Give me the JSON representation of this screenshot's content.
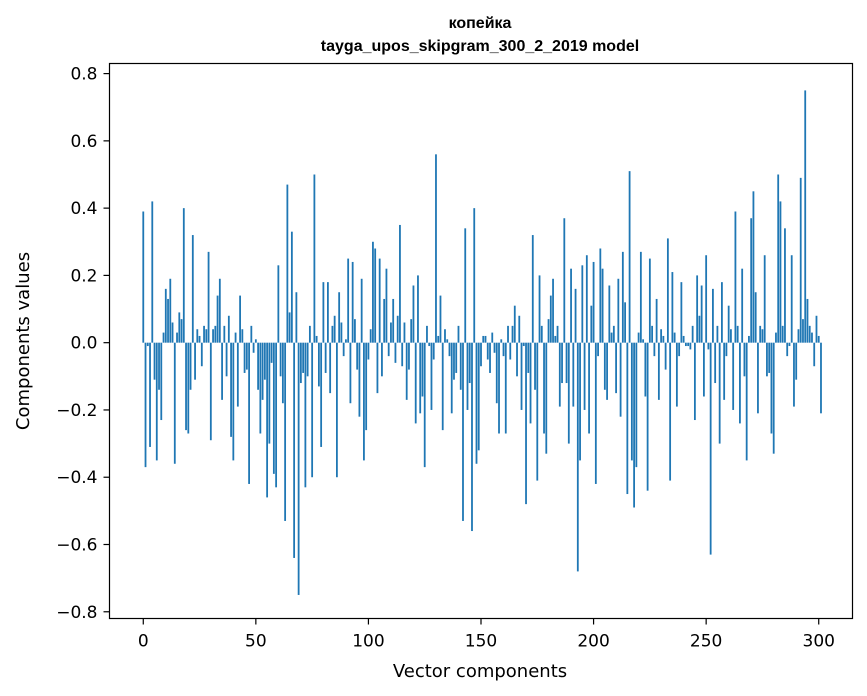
{
  "chart_data": {
    "type": "bar",
    "title_lines": [
      "копейка",
      "tayga_upos_skipgram_300_2_2019 model"
    ],
    "xlabel": "Vector components",
    "ylabel": "Components values",
    "xlim": [
      -15,
      315
    ],
    "ylim": [
      -0.82,
      0.83
    ],
    "xticks": [
      0,
      50,
      100,
      150,
      200,
      250,
      300
    ],
    "xtick_labels": [
      "0",
      "50",
      "100",
      "150",
      "200",
      "250",
      "300"
    ],
    "yticks": [
      0.8,
      0.6,
      0.4,
      0.2,
      0.0,
      -0.2,
      -0.4,
      -0.6,
      -0.8
    ],
    "ytick_labels": [
      "0.8",
      "0.6",
      "0.4",
      "0.2",
      "0.0",
      "−0.2",
      "−0.4",
      "−0.6",
      "−0.8"
    ],
    "bar_color": "#1f77b4",
    "grid": false,
    "values": [
      0.39,
      -0.37,
      -0.01,
      -0.31,
      0.42,
      -0.11,
      -0.35,
      -0.14,
      -0.23,
      0.03,
      0.16,
      0.13,
      0.19,
      0.06,
      -0.36,
      0.03,
      0.09,
      0.07,
      0.4,
      -0.26,
      -0.27,
      -0.14,
      0.32,
      -0.11,
      0.04,
      0.02,
      -0.07,
      0.05,
      0.04,
      0.27,
      -0.29,
      0.04,
      0.05,
      0.14,
      0.19,
      -0.17,
      0.05,
      -0.1,
      0.08,
      -0.28,
      -0.35,
      0.03,
      -0.19,
      0.14,
      0.04,
      -0.09,
      -0.08,
      -0.42,
      0.05,
      -0.03,
      0.01,
      -0.14,
      -0.27,
      -0.17,
      -0.11,
      -0.46,
      -0.3,
      -0.06,
      -0.39,
      -0.43,
      0.23,
      -0.1,
      -0.18,
      -0.53,
      0.47,
      0.09,
      0.33,
      -0.64,
      0.15,
      -0.75,
      -0.12,
      -0.09,
      -0.43,
      -0.1,
      0.05,
      -0.4,
      0.5,
      0.02,
      -0.13,
      -0.31,
      0.18,
      -0.09,
      0.18,
      -0.15,
      0.05,
      0.08,
      -0.4,
      0.15,
      0.06,
      -0.04,
      0.01,
      0.25,
      -0.18,
      0.24,
      0.07,
      -0.08,
      -0.22,
      0.19,
      -0.35,
      -0.26,
      -0.05,
      0.04,
      0.3,
      0.28,
      -0.15,
      0.25,
      -0.1,
      0.13,
      0.22,
      -0.04,
      0.06,
      0.13,
      -0.06,
      0.08,
      0.35,
      -0.07,
      0.06,
      -0.17,
      -0.08,
      0.07,
      0.17,
      -0.24,
      0.2,
      -0.21,
      -0.16,
      -0.37,
      0.05,
      -0.01,
      -0.2,
      -0.05,
      0.56,
      0.02,
      0.14,
      -0.26,
      0.04,
      0.01,
      -0.04,
      -0.21,
      -0.11,
      -0.09,
      0.05,
      -0.14,
      -0.53,
      0.34,
      -0.2,
      -0.12,
      -0.56,
      0.4,
      -0.36,
      -0.32,
      -0.07,
      0.02,
      0.02,
      -0.05,
      -0.09,
      0.03,
      -0.03,
      -0.18,
      -0.27,
      0.01,
      -0.04,
      -0.27,
      0.05,
      -0.05,
      0.05,
      0.11,
      -0.1,
      0.08,
      -0.2,
      -0.01,
      -0.48,
      -0.09,
      -0.24,
      0.32,
      -0.14,
      -0.41,
      0.2,
      0.05,
      -0.27,
      -0.33,
      0.07,
      0.14,
      0.19,
      0.02,
      0.05,
      -0.19,
      -0.12,
      0.37,
      -0.12,
      -0.3,
      0.22,
      -0.19,
      0.16,
      -0.68,
      -0.35,
      0.23,
      -0.2,
      0.26,
      -0.27,
      0.11,
      0.24,
      -0.42,
      -0.04,
      0.28,
      0.22,
      -0.14,
      -0.17,
      0.17,
      0.03,
      0.05,
      -0.15,
      0.19,
      -0.22,
      0.27,
      0.12,
      -0.45,
      0.51,
      -0.35,
      -0.49,
      -0.37,
      0.03,
      0.27,
      0.01,
      -0.16,
      -0.44,
      0.25,
      0.05,
      -0.04,
      0.13,
      -0.17,
      0.04,
      0.02,
      -0.08,
      0.31,
      -0.41,
      0.21,
      0.03,
      -0.19,
      -0.04,
      0.18,
      0.02,
      -0.01,
      -0.01,
      -0.02,
      0.05,
      -0.23,
      0.2,
      0.08,
      0.17,
      -0.16,
      0.26,
      -0.02,
      -0.63,
      0.16,
      -0.12,
      0.05,
      -0.3,
      0.18,
      -0.17,
      -0.04,
      0.11,
      0.04,
      -0.2,
      0.39,
      0.05,
      -0.24,
      0.22,
      -0.1,
      -0.35,
      0.02,
      0.37,
      0.45,
      0.15,
      -0.21,
      0.05,
      0.04,
      0.26,
      -0.1,
      -0.09,
      -0.27,
      -0.33,
      0.03,
      0.5,
      0.42,
      0.05,
      0.34,
      -0.04,
      -0.01,
      0.26,
      -0.19,
      -0.11,
      0.04,
      0.49,
      0.07,
      0.75,
      0.13,
      0.05,
      0.03,
      -0.07,
      0.08,
      0.02,
      -0.21
    ]
  }
}
